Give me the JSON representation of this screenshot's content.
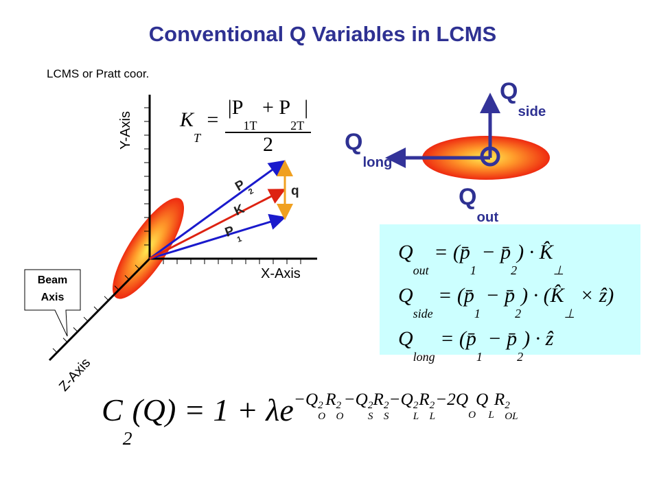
{
  "title": "Conventional Q Variables in LCMS",
  "subtitle": "LCMS or Pratt coor.",
  "axes": {
    "y": "Y-Axis",
    "x": "X-Axis",
    "z": "Z-Axis"
  },
  "callout": [
    "Beam",
    "Axis"
  ],
  "vectors": {
    "p2": {
      "t": "P",
      "sub": "2"
    },
    "k": "K",
    "p1": {
      "t": "P",
      "sub": "1"
    },
    "q": "q"
  },
  "q_directions": {
    "side": {
      "t": "Q",
      "sub": "side"
    },
    "long": {
      "t": "Q",
      "sub": "long"
    },
    "out": {
      "t": "Q",
      "sub": "out"
    }
  },
  "kt_formula": {
    "lhs": [
      {
        "t": "K",
        "sub": "T"
      },
      {
        "t": " ="
      }
    ],
    "numerator": [
      {
        "t": "|P",
        "sub": "1T"
      },
      {
        "t": " + P",
        "sub": "2T"
      },
      {
        "t": "|"
      }
    ],
    "denominator": "2"
  },
  "q_formulas": [
    [
      {
        "t": "Q",
        "sub": "out"
      },
      {
        "t": " = ("
      },
      {
        "t": "p̄",
        "sub": "1"
      },
      {
        "t": " − "
      },
      {
        "t": "p̄",
        "sub": "2"
      },
      {
        "t": ") · "
      },
      {
        "t": "K̂",
        "sub": "⊥"
      }
    ],
    [
      {
        "t": "Q",
        "sub": "side"
      },
      {
        "t": " = ("
      },
      {
        "t": "p̄",
        "sub": "1"
      },
      {
        "t": " − "
      },
      {
        "t": "p̄",
        "sub": "2"
      },
      {
        "t": ") · ("
      },
      {
        "t": "K̂",
        "sub": "⊥"
      },
      {
        "t": " × ẑ)"
      }
    ],
    [
      {
        "t": "Q",
        "sub": "long"
      },
      {
        "t": " = ("
      },
      {
        "t": "p̄",
        "sub": "1"
      },
      {
        "t": " − "
      },
      {
        "t": "p̄",
        "sub": "2"
      },
      {
        "t": ") · ẑ"
      }
    ]
  ],
  "correlation_formula": {
    "base": [
      {
        "t": "C",
        "sub": "2"
      },
      {
        "t": "(Q) = 1 + λe"
      }
    ],
    "exponent": [
      {
        "t": "−Q",
        "sup": "2",
        "sub": "O"
      },
      {
        "t": "R",
        "sup": "2",
        "sub": "O"
      },
      {
        "t": "−Q",
        "sup": "2",
        "sub": "S"
      },
      {
        "t": "R",
        "sup": "2",
        "sub": "S"
      },
      {
        "t": "−Q",
        "sup": "2",
        "sub": "L"
      },
      {
        "t": "R",
        "sup": "2",
        "sub": "L"
      },
      {
        "t": "−2Q",
        "sub": "O"
      },
      {
        "t": "Q",
        "sub": "L"
      },
      {
        "t": "R",
        "sup": "2",
        "sub": "OL"
      }
    ]
  }
}
